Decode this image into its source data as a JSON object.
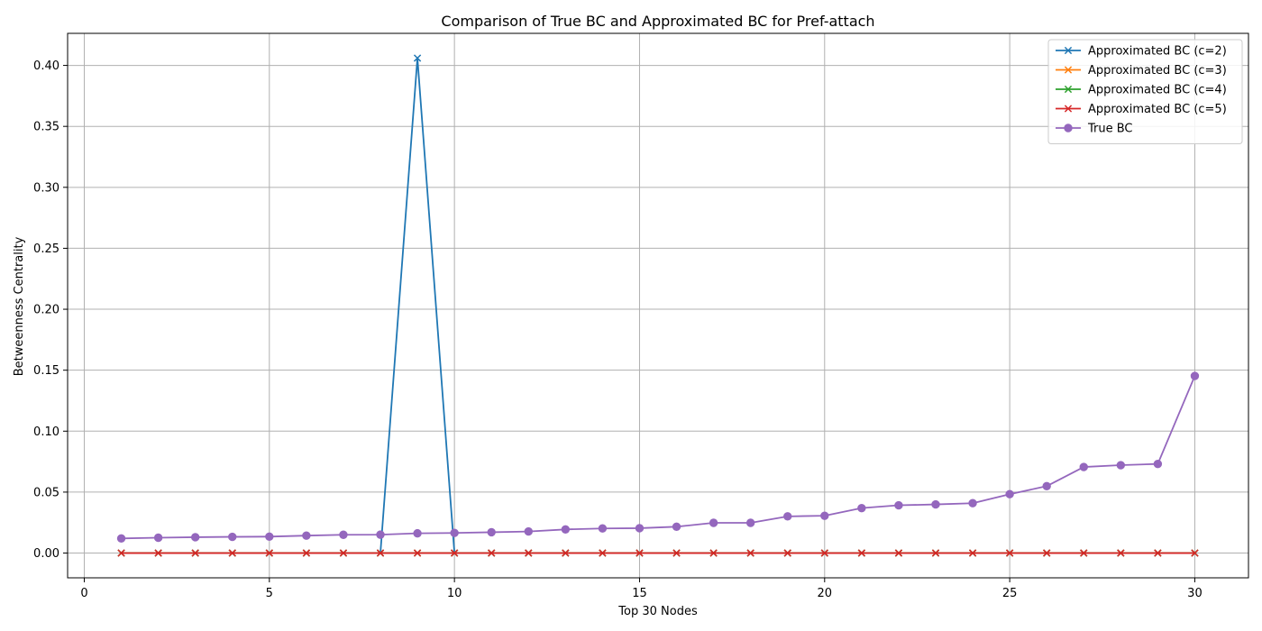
{
  "chart_data": {
    "type": "line",
    "title": "Comparison of True BC and Approximated BC for Pref-attach",
    "xlabel": "Top 30 Nodes",
    "ylabel": "Betweenness Centrality",
    "xlim": [
      -0.45,
      31.45
    ],
    "ylim": [
      -0.0203,
      0.4263
    ],
    "xticks": [
      0,
      5,
      10,
      15,
      20,
      25,
      30
    ],
    "xtick_labels": [
      "0",
      "5",
      "10",
      "15",
      "20",
      "25",
      "30"
    ],
    "yticks": [
      0.0,
      0.05,
      0.1,
      0.15,
      0.2,
      0.25,
      0.3,
      0.35,
      0.4
    ],
    "ytick_labels": [
      "0.00",
      "0.05",
      "0.10",
      "0.15",
      "0.20",
      "0.25",
      "0.30",
      "0.35",
      "0.40"
    ],
    "grid": true,
    "legend_position": "top-right",
    "x": [
      1,
      2,
      3,
      4,
      5,
      6,
      7,
      8,
      9,
      10,
      11,
      12,
      13,
      14,
      15,
      16,
      17,
      18,
      19,
      20,
      21,
      22,
      23,
      24,
      25,
      26,
      27,
      28,
      29,
      30
    ],
    "series": [
      {
        "name": "Approximated BC (c=2)",
        "color": "#1f77b4",
        "marker": "x",
        "values": [
          0,
          0,
          0,
          0,
          0,
          0,
          0,
          0,
          0.406,
          0,
          0,
          0,
          0,
          0,
          0,
          0,
          0,
          0,
          0,
          0,
          0,
          0,
          0,
          0,
          0,
          0,
          0,
          0,
          0,
          0
        ]
      },
      {
        "name": "Approximated BC (c=3)",
        "color": "#ff7f0e",
        "marker": "x",
        "values": [
          0,
          0,
          0,
          0,
          0,
          0,
          0,
          0,
          0,
          0,
          0,
          0,
          0,
          0,
          0,
          0,
          0,
          0,
          0,
          0,
          0,
          0,
          0,
          0,
          0,
          0,
          0,
          0,
          0,
          0
        ]
      },
      {
        "name": "Approximated BC (c=4)",
        "color": "#2ca02c",
        "marker": "x",
        "values": [
          0,
          0,
          0,
          0,
          0,
          0,
          0,
          0,
          0,
          0,
          0,
          0,
          0,
          0,
          0,
          0,
          0,
          0,
          0,
          0,
          0,
          0,
          0,
          0,
          0,
          0,
          0,
          0,
          0,
          0
        ]
      },
      {
        "name": "Approximated BC (c=5)",
        "color": "#d62728",
        "marker": "x",
        "values": [
          0,
          0,
          0,
          0,
          0,
          0,
          0,
          0,
          0,
          0,
          0,
          0,
          0,
          0,
          0,
          0,
          0,
          0,
          0,
          0,
          0,
          0,
          0,
          0,
          0,
          0,
          0,
          0,
          0,
          0
        ]
      },
      {
        "name": "True BC",
        "color": "#9467bd",
        "marker": "o",
        "values": [
          0.012,
          0.0126,
          0.013,
          0.0133,
          0.0135,
          0.0143,
          0.015,
          0.0151,
          0.0162,
          0.0165,
          0.0171,
          0.0177,
          0.0194,
          0.0202,
          0.0204,
          0.0216,
          0.0248,
          0.0248,
          0.0301,
          0.0306,
          0.0369,
          0.0392,
          0.0399,
          0.0409,
          0.0483,
          0.0549,
          0.0706,
          0.0721,
          0.0731,
          0.1453
        ]
      }
    ]
  }
}
